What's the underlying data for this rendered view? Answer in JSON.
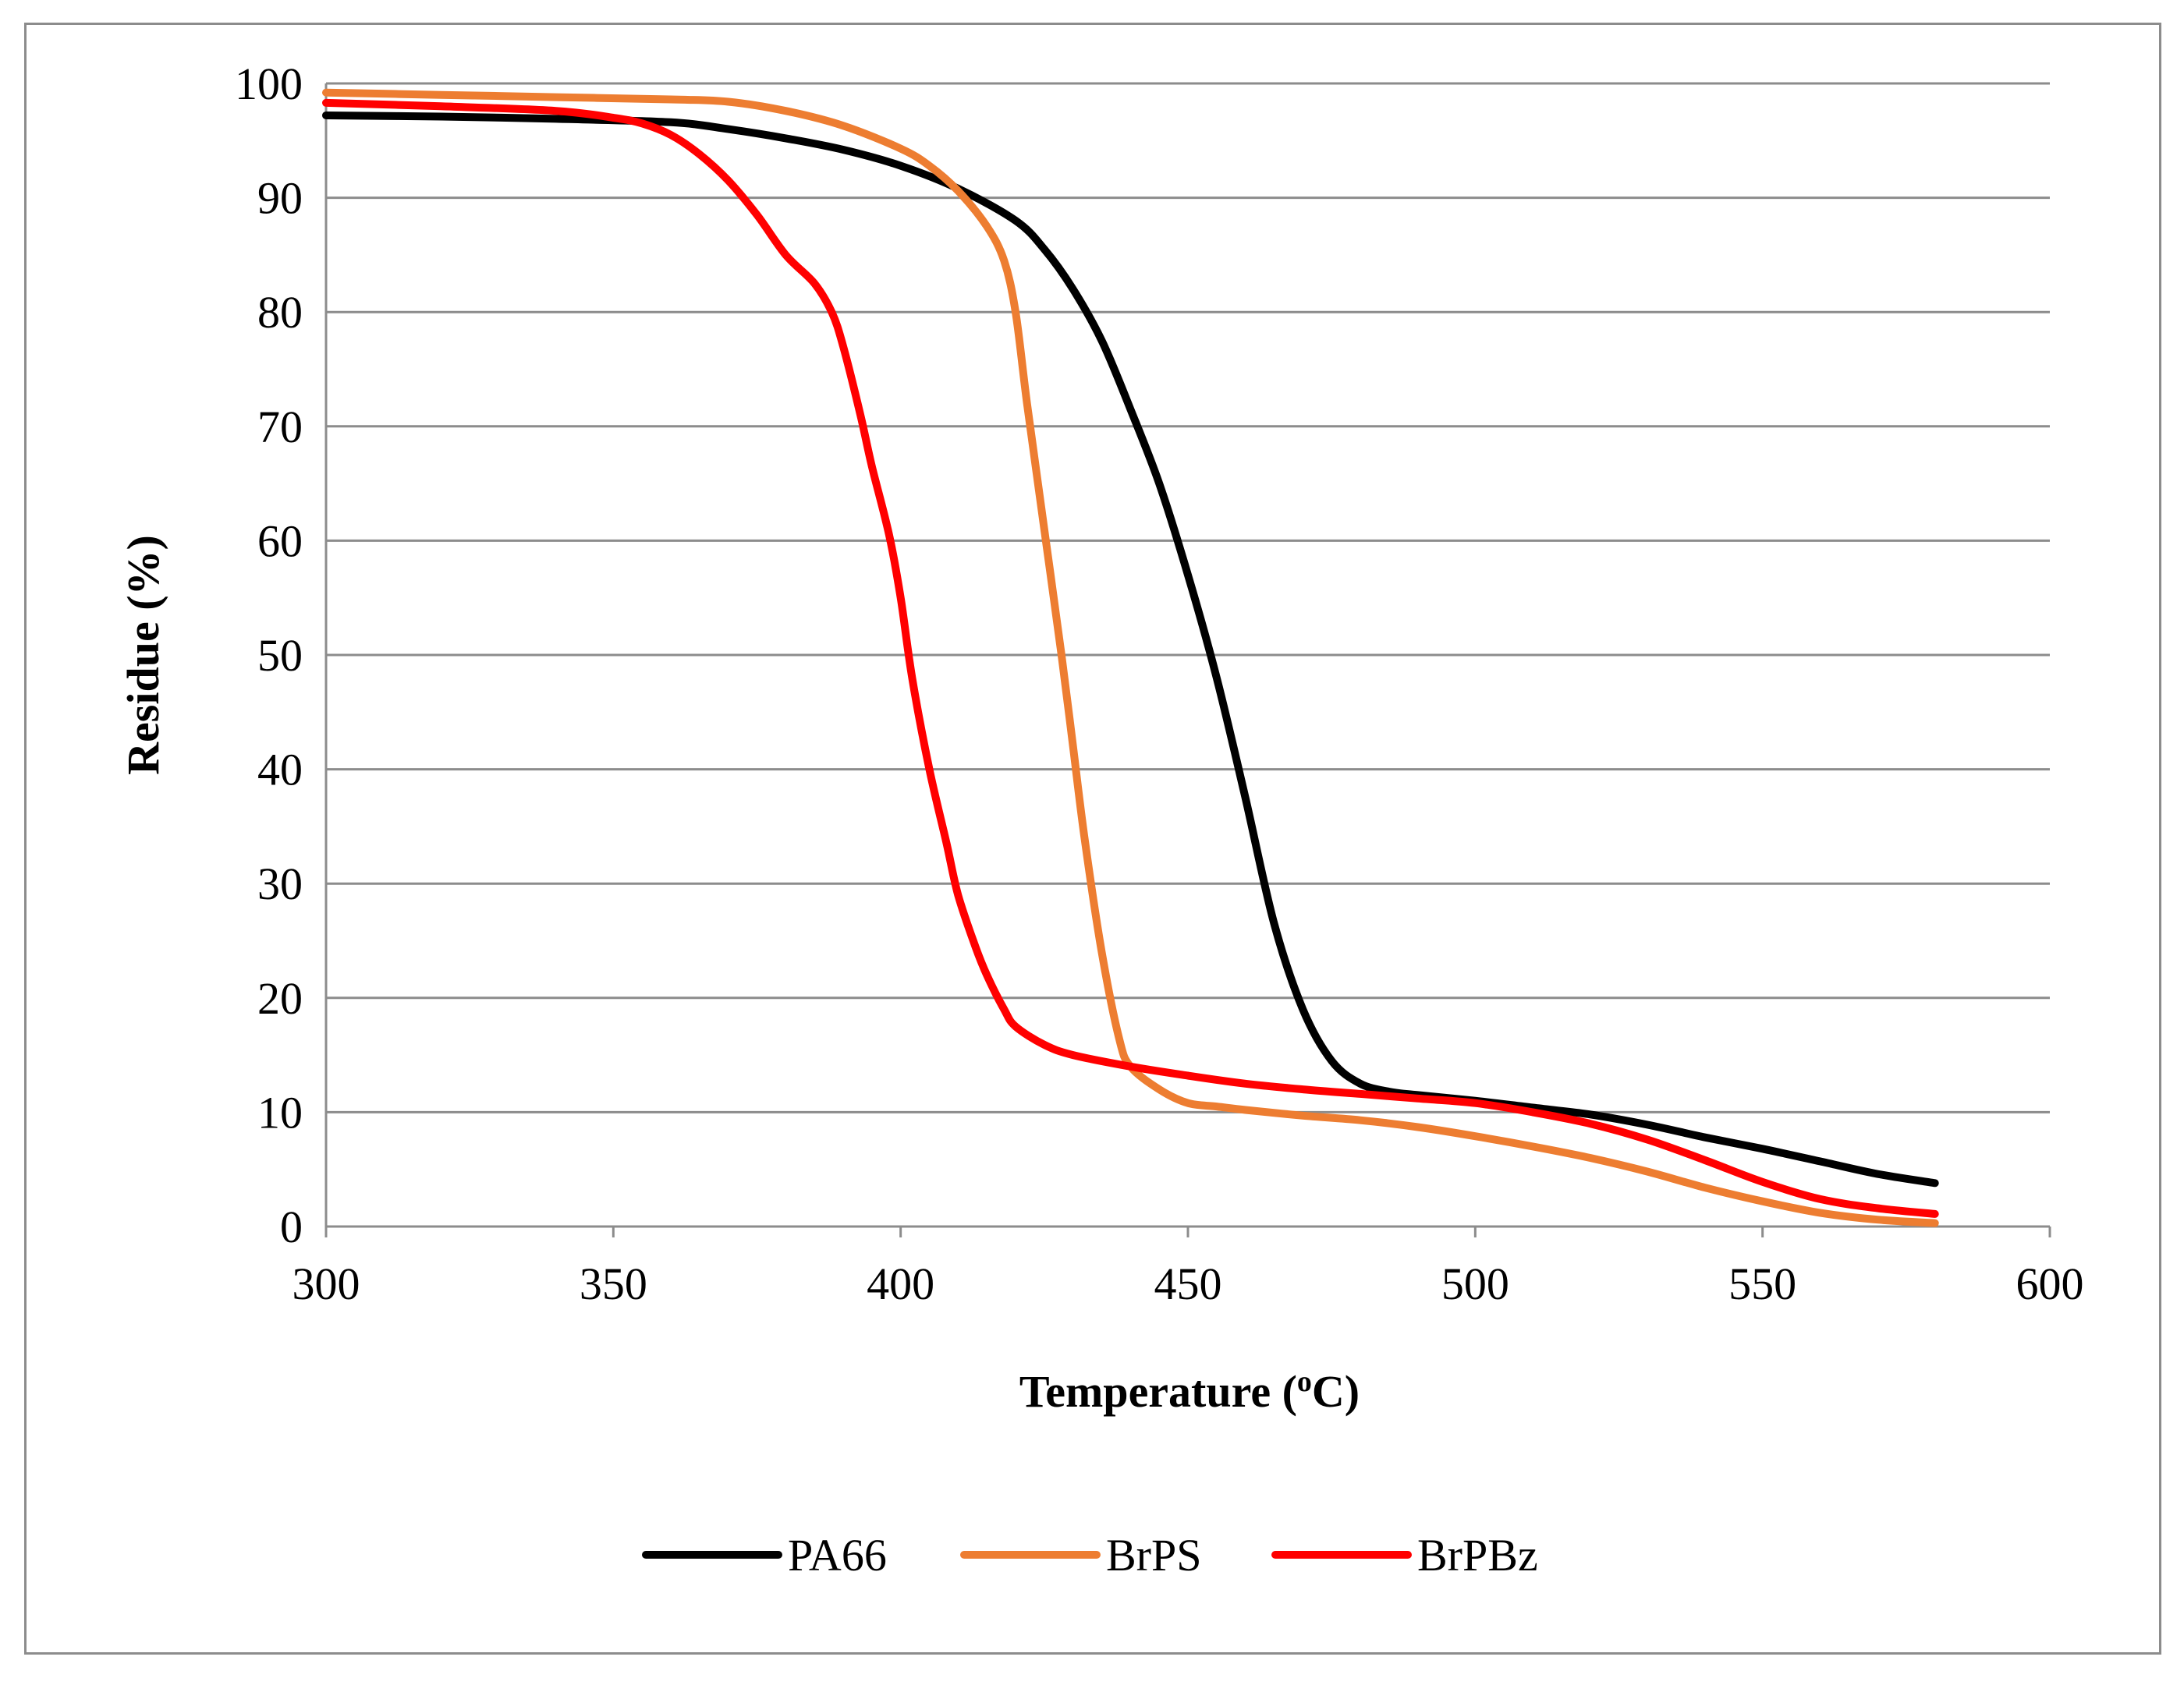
{
  "chart_data": {
    "type": "line",
    "title": "",
    "xlabel": "Temperature (",
    "xlabel_superscript": "o",
    "xlabel_suffix": "C)",
    "ylabel": "Residue (%)",
    "xlim": [
      300,
      600
    ],
    "ylim": [
      0,
      100
    ],
    "x_ticks": [
      "300",
      "350",
      "400",
      "450",
      "500",
      "550",
      "600"
    ],
    "y_ticks": [
      "0",
      "10",
      "20",
      "30",
      "40",
      "50",
      "60",
      "70",
      "80",
      "90",
      "100"
    ],
    "grid": "horizontal",
    "legend_position": "bottom",
    "series": [
      {
        "name": "PA66",
        "color": "#000000",
        "x": [
          300,
          320,
          340,
          360,
          370,
          380,
          390,
          400,
          410,
          420,
          425,
          430,
          435,
          440,
          445,
          450,
          455,
          460,
          465,
          470,
          475,
          480,
          485,
          490,
          500,
          510,
          520,
          530,
          540,
          550,
          560,
          570,
          580
        ],
        "y": [
          97.2,
          97.1,
          96.9,
          96.6,
          96.0,
          95.2,
          94.2,
          92.8,
          90.8,
          88.0,
          85.5,
          82.0,
          77.5,
          71.5,
          65.0,
          57.0,
          48.0,
          37.5,
          26.5,
          19.0,
          14.5,
          12.5,
          11.8,
          11.5,
          11.0,
          10.4,
          9.8,
          8.9,
          7.8,
          6.8,
          5.7,
          4.6,
          3.8
        ]
      },
      {
        "name": "BrPS",
        "color": "#ed7d31",
        "x": [
          300,
          320,
          340,
          360,
          370,
          380,
          390,
          400,
          405,
          410,
          415,
          418,
          420,
          422,
          425,
          428,
          430,
          432,
          435,
          438,
          440,
          445,
          450,
          455,
          460,
          470,
          480,
          490,
          500,
          510,
          520,
          530,
          540,
          550,
          560,
          570,
          580
        ],
        "y": [
          99.2,
          99.0,
          98.8,
          98.6,
          98.4,
          97.6,
          96.3,
          94.3,
          92.8,
          90.6,
          87.5,
          84.5,
          80.0,
          72.0,
          61.0,
          50.0,
          42.0,
          34.0,
          24.0,
          16.5,
          14.0,
          12.0,
          10.8,
          10.5,
          10.2,
          9.7,
          9.3,
          8.7,
          7.9,
          7.0,
          6.0,
          4.8,
          3.4,
          2.2,
          1.2,
          0.6,
          0.3
        ]
      },
      {
        "name": "BrPBz",
        "color": "#ff0000",
        "x": [
          300,
          320,
          340,
          350,
          355,
          360,
          365,
          370,
          375,
          380,
          385,
          388,
          390,
          393,
          395,
          398,
          400,
          402,
          405,
          408,
          410,
          413,
          415,
          418,
          420,
          425,
          430,
          440,
          450,
          460,
          470,
          480,
          490,
          500,
          510,
          520,
          530,
          540,
          550,
          560,
          570,
          580
        ],
        "y": [
          98.3,
          98.0,
          97.6,
          97.0,
          96.5,
          95.5,
          93.8,
          91.5,
          88.5,
          85.0,
          82.5,
          80.0,
          77.0,
          71.0,
          66.5,
          60.5,
          55.0,
          48.0,
          40.0,
          33.5,
          29.0,
          24.5,
          22.0,
          19.0,
          17.5,
          15.9,
          15.0,
          14.0,
          13.2,
          12.5,
          12.0,
          11.6,
          11.2,
          10.8,
          10.0,
          9.0,
          7.6,
          5.8,
          3.9,
          2.4,
          1.6,
          1.1
        ]
      }
    ]
  }
}
